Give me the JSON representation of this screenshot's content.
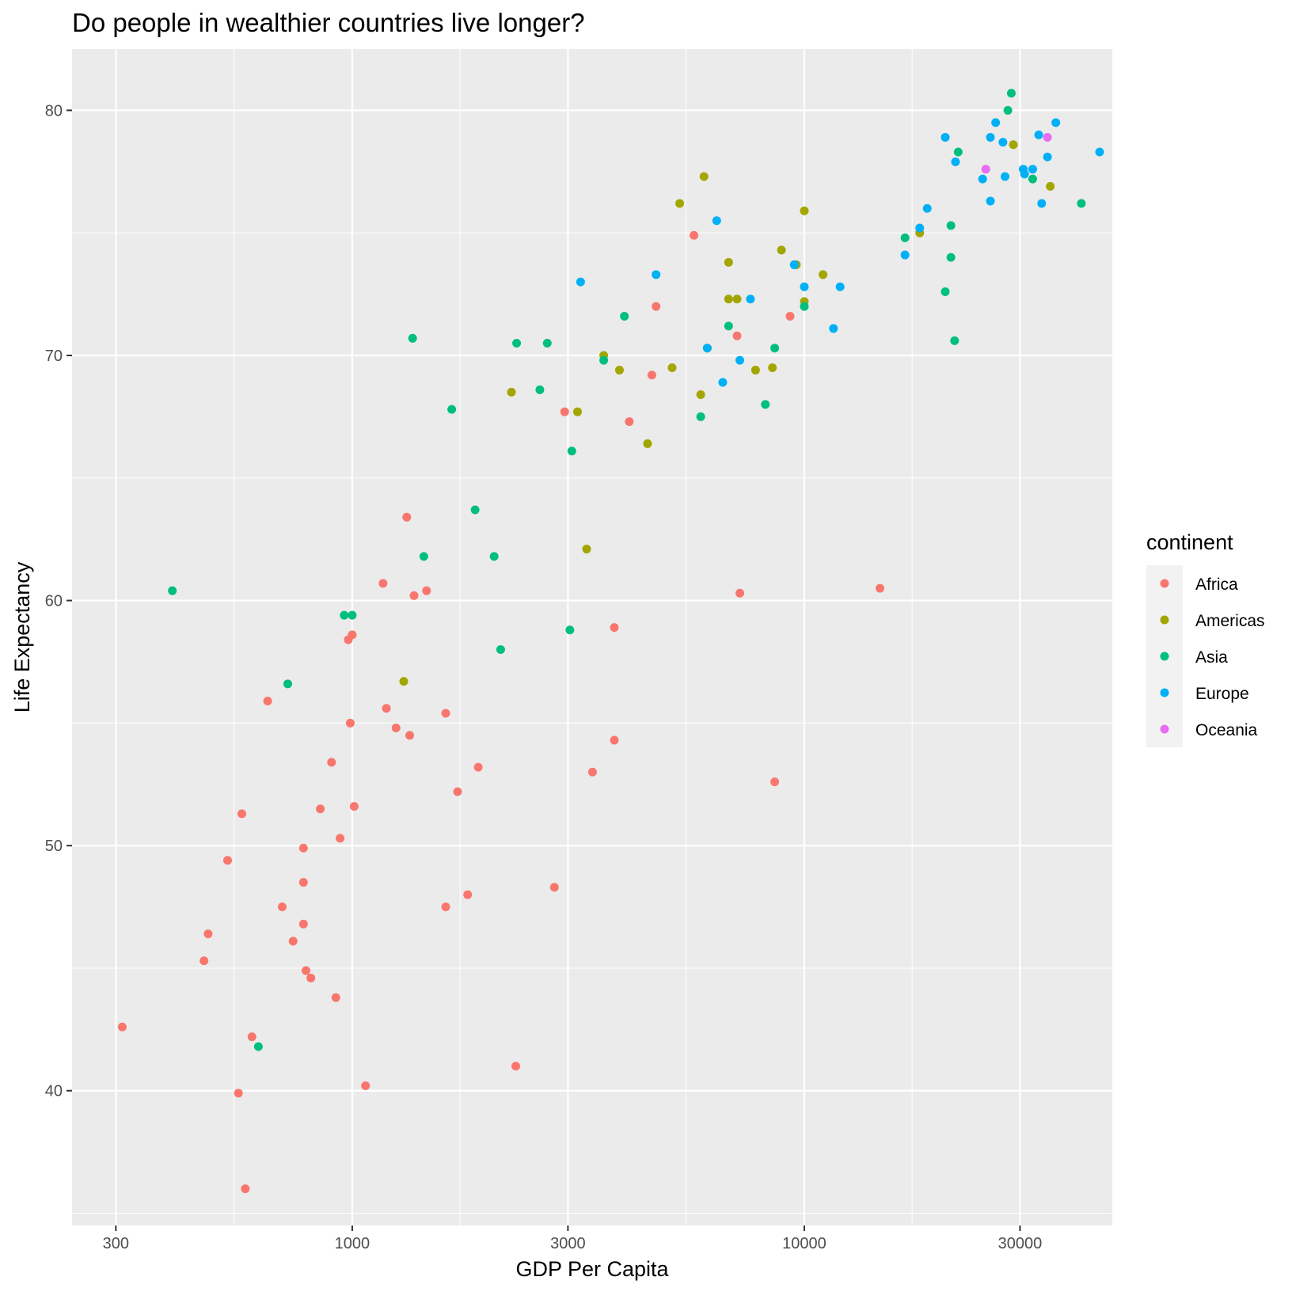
{
  "chart_data": {
    "type": "scatter",
    "title": "Do people in wealthier countries live longer?",
    "xlabel": "GDP Per Capita",
    "ylabel": "Life Expectancy",
    "x_scale": "log10",
    "xlim": [
      240,
      48000
    ],
    "ylim": [
      34.5,
      82.5
    ],
    "x_ticks": [
      300,
      1000,
      3000,
      10000,
      30000
    ],
    "x_tick_labels": [
      "300",
      "1000",
      "3000",
      "10000",
      "30000"
    ],
    "y_ticks": [
      40,
      50,
      60,
      70,
      80
    ],
    "y_tick_labels": [
      "40",
      "50",
      "60",
      "70",
      "80"
    ],
    "grid": true,
    "legend": {
      "title": "continent",
      "position": "right"
    },
    "series": [
      {
        "name": "Africa",
        "color": "#F8766D",
        "points": [
          [
            310,
            42.6
          ],
          [
            470,
            45.3
          ],
          [
            480,
            46.4
          ],
          [
            530,
            49.4
          ],
          [
            560,
            39.9
          ],
          [
            570,
            51.3
          ],
          [
            580,
            36.0
          ],
          [
            600,
            42.2
          ],
          [
            650,
            55.9
          ],
          [
            700,
            47.5
          ],
          [
            740,
            46.1
          ],
          [
            780,
            48.5
          ],
          [
            780,
            49.9
          ],
          [
            780,
            46.8
          ],
          [
            790,
            44.9
          ],
          [
            810,
            44.6
          ],
          [
            850,
            51.5
          ],
          [
            900,
            53.4
          ],
          [
            920,
            43.8
          ],
          [
            940,
            50.3
          ],
          [
            980,
            58.4
          ],
          [
            990,
            55.0
          ],
          [
            1000,
            58.6
          ],
          [
            1010,
            51.6
          ],
          [
            1070,
            40.2
          ],
          [
            1170,
            60.7
          ],
          [
            1190,
            55.6
          ],
          [
            1250,
            54.8
          ],
          [
            1320,
            63.4
          ],
          [
            1340,
            54.5
          ],
          [
            1370,
            60.2
          ],
          [
            1460,
            60.4
          ],
          [
            1610,
            55.4
          ],
          [
            1610,
            47.5
          ],
          [
            1710,
            52.2
          ],
          [
            1800,
            48.0
          ],
          [
            1900,
            53.2
          ],
          [
            2300,
            41.0
          ],
          [
            2800,
            48.3
          ],
          [
            2950,
            67.7
          ],
          [
            3400,
            53.0
          ],
          [
            3800,
            58.9
          ],
          [
            3800,
            54.3
          ],
          [
            4100,
            67.3
          ],
          [
            4600,
            69.2
          ],
          [
            4700,
            72.0
          ],
          [
            5700,
            74.9
          ],
          [
            7100,
            70.8
          ],
          [
            7200,
            60.3
          ],
          [
            8600,
            52.6
          ],
          [
            9300,
            71.6
          ],
          [
            14700,
            60.5
          ]
        ]
      },
      {
        "name": "Americas",
        "color": "#A3A500",
        "points": [
          [
            1300,
            56.7
          ],
          [
            2250,
            68.5
          ],
          [
            3150,
            67.7
          ],
          [
            3300,
            62.1
          ],
          [
            3600,
            70.0
          ],
          [
            3900,
            69.4
          ],
          [
            4500,
            66.4
          ],
          [
            5100,
            69.5
          ],
          [
            5300,
            76.2
          ],
          [
            5900,
            68.4
          ],
          [
            6000,
            77.3
          ],
          [
            6100,
            70.3
          ],
          [
            6800,
            73.8
          ],
          [
            6800,
            72.3
          ],
          [
            7100,
            72.3
          ],
          [
            7800,
            69.4
          ],
          [
            8500,
            69.5
          ],
          [
            8900,
            74.3
          ],
          [
            9600,
            73.7
          ],
          [
            10000,
            75.9
          ],
          [
            10000,
            72.2
          ],
          [
            11000,
            73.3
          ],
          [
            18000,
            75.0
          ],
          [
            29000,
            78.6
          ],
          [
            35000,
            76.9
          ]
        ]
      },
      {
        "name": "Asia",
        "color": "#00BF7D",
        "points": [
          [
            400,
            60.4
          ],
          [
            620,
            41.8
          ],
          [
            720,
            56.6
          ],
          [
            960,
            59.4
          ],
          [
            1000,
            59.4
          ],
          [
            1360,
            70.7
          ],
          [
            1440,
            61.8
          ],
          [
            1660,
            67.8
          ],
          [
            1870,
            63.7
          ],
          [
            2060,
            61.8
          ],
          [
            2130,
            58.0
          ],
          [
            2310,
            70.5
          ],
          [
            2600,
            68.6
          ],
          [
            2700,
            70.5
          ],
          [
            3030,
            58.8
          ],
          [
            3060,
            66.1
          ],
          [
            3600,
            69.8
          ],
          [
            4000,
            71.6
          ],
          [
            5900,
            67.5
          ],
          [
            6800,
            71.2
          ],
          [
            8200,
            68.0
          ],
          [
            8600,
            70.3
          ],
          [
            10000,
            72.0
          ],
          [
            16700,
            74.8
          ],
          [
            20500,
            72.6
          ],
          [
            21100,
            75.3
          ],
          [
            21100,
            74.0
          ],
          [
            21500,
            70.6
          ],
          [
            21900,
            78.3
          ],
          [
            28200,
            80.0
          ],
          [
            28700,
            80.7
          ],
          [
            32000,
            77.2
          ],
          [
            41000,
            76.2
          ]
        ]
      },
      {
        "name": "Europe",
        "color": "#00B0F6",
        "points": [
          [
            3200,
            73.0
          ],
          [
            4700,
            73.3
          ],
          [
            6100,
            70.3
          ],
          [
            6400,
            75.5
          ],
          [
            6600,
            68.9
          ],
          [
            7200,
            69.8
          ],
          [
            7600,
            72.3
          ],
          [
            9500,
            73.7
          ],
          [
            10000,
            72.8
          ],
          [
            11600,
            71.1
          ],
          [
            12000,
            72.8
          ],
          [
            16700,
            74.1
          ],
          [
            18000,
            75.2
          ],
          [
            18700,
            76.0
          ],
          [
            20500,
            78.9
          ],
          [
            21600,
            77.9
          ],
          [
            24800,
            77.2
          ],
          [
            25800,
            76.3
          ],
          [
            25800,
            78.9
          ],
          [
            26500,
            79.5
          ],
          [
            27500,
            78.7
          ],
          [
            27800,
            77.3
          ],
          [
            30500,
            77.6
          ],
          [
            30700,
            77.4
          ],
          [
            32000,
            77.6
          ],
          [
            33000,
            79.0
          ],
          [
            33500,
            76.2
          ],
          [
            34500,
            78.1
          ],
          [
            36000,
            79.5
          ],
          [
            45000,
            78.3
          ]
        ]
      },
      {
        "name": "Oceania",
        "color": "#E76BF3",
        "points": [
          [
            25200,
            77.6
          ],
          [
            34500,
            78.9
          ]
        ]
      }
    ]
  }
}
